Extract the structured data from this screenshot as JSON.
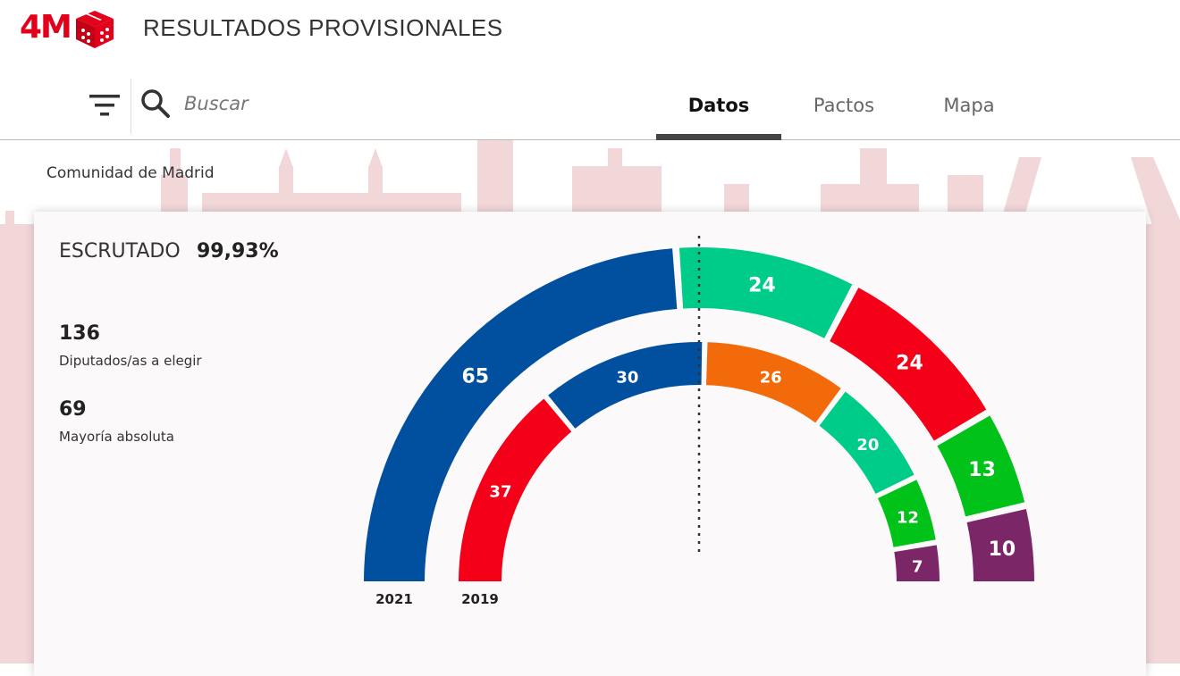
{
  "header": {
    "logo_text": "4M",
    "title": "RESULTADOS PROVISIONALES"
  },
  "nav": {
    "search_placeholder": "Buscar",
    "tabs": [
      {
        "label": "Datos",
        "active": true
      },
      {
        "label": "Pactos",
        "active": false
      },
      {
        "label": "Mapa",
        "active": false
      }
    ]
  },
  "region": "Comunidad de Madrid",
  "summary": {
    "scrutinized_label": "ESCRUTADO",
    "scrutinized_value": "99,93%",
    "seats_total": "136",
    "seats_total_label": "Diputados/as a elegir",
    "majority": "69",
    "majority_label": "Mayoría absoluta"
  },
  "colors": {
    "brand_red": "#e3001b",
    "blue": "#0150a0",
    "teal": "#00cc8a",
    "red": "#f50019",
    "green": "#00c218",
    "purple": "#7b2667",
    "orange": "#f36a0b"
  },
  "chart_data": {
    "type": "semicircle-parliament",
    "total_seats": 136,
    "majority": 69,
    "rings": [
      {
        "year": "2021",
        "seats": [
          {
            "value": 65,
            "color": "#0150a0"
          },
          {
            "value": 24,
            "color": "#00cc8a"
          },
          {
            "value": 24,
            "color": "#f50019"
          },
          {
            "value": 13,
            "color": "#00c218"
          },
          {
            "value": 10,
            "color": "#7b2667"
          }
        ]
      },
      {
        "year": "2019",
        "seats": [
          {
            "value": 37,
            "color": "#f50019"
          },
          {
            "value": 30,
            "color": "#0150a0"
          },
          {
            "value": 26,
            "color": "#f36a0b"
          },
          {
            "value": 20,
            "color": "#00cc8a"
          },
          {
            "value": 12,
            "color": "#00c218"
          },
          {
            "value": 7,
            "color": "#7b2667"
          }
        ]
      }
    ]
  }
}
